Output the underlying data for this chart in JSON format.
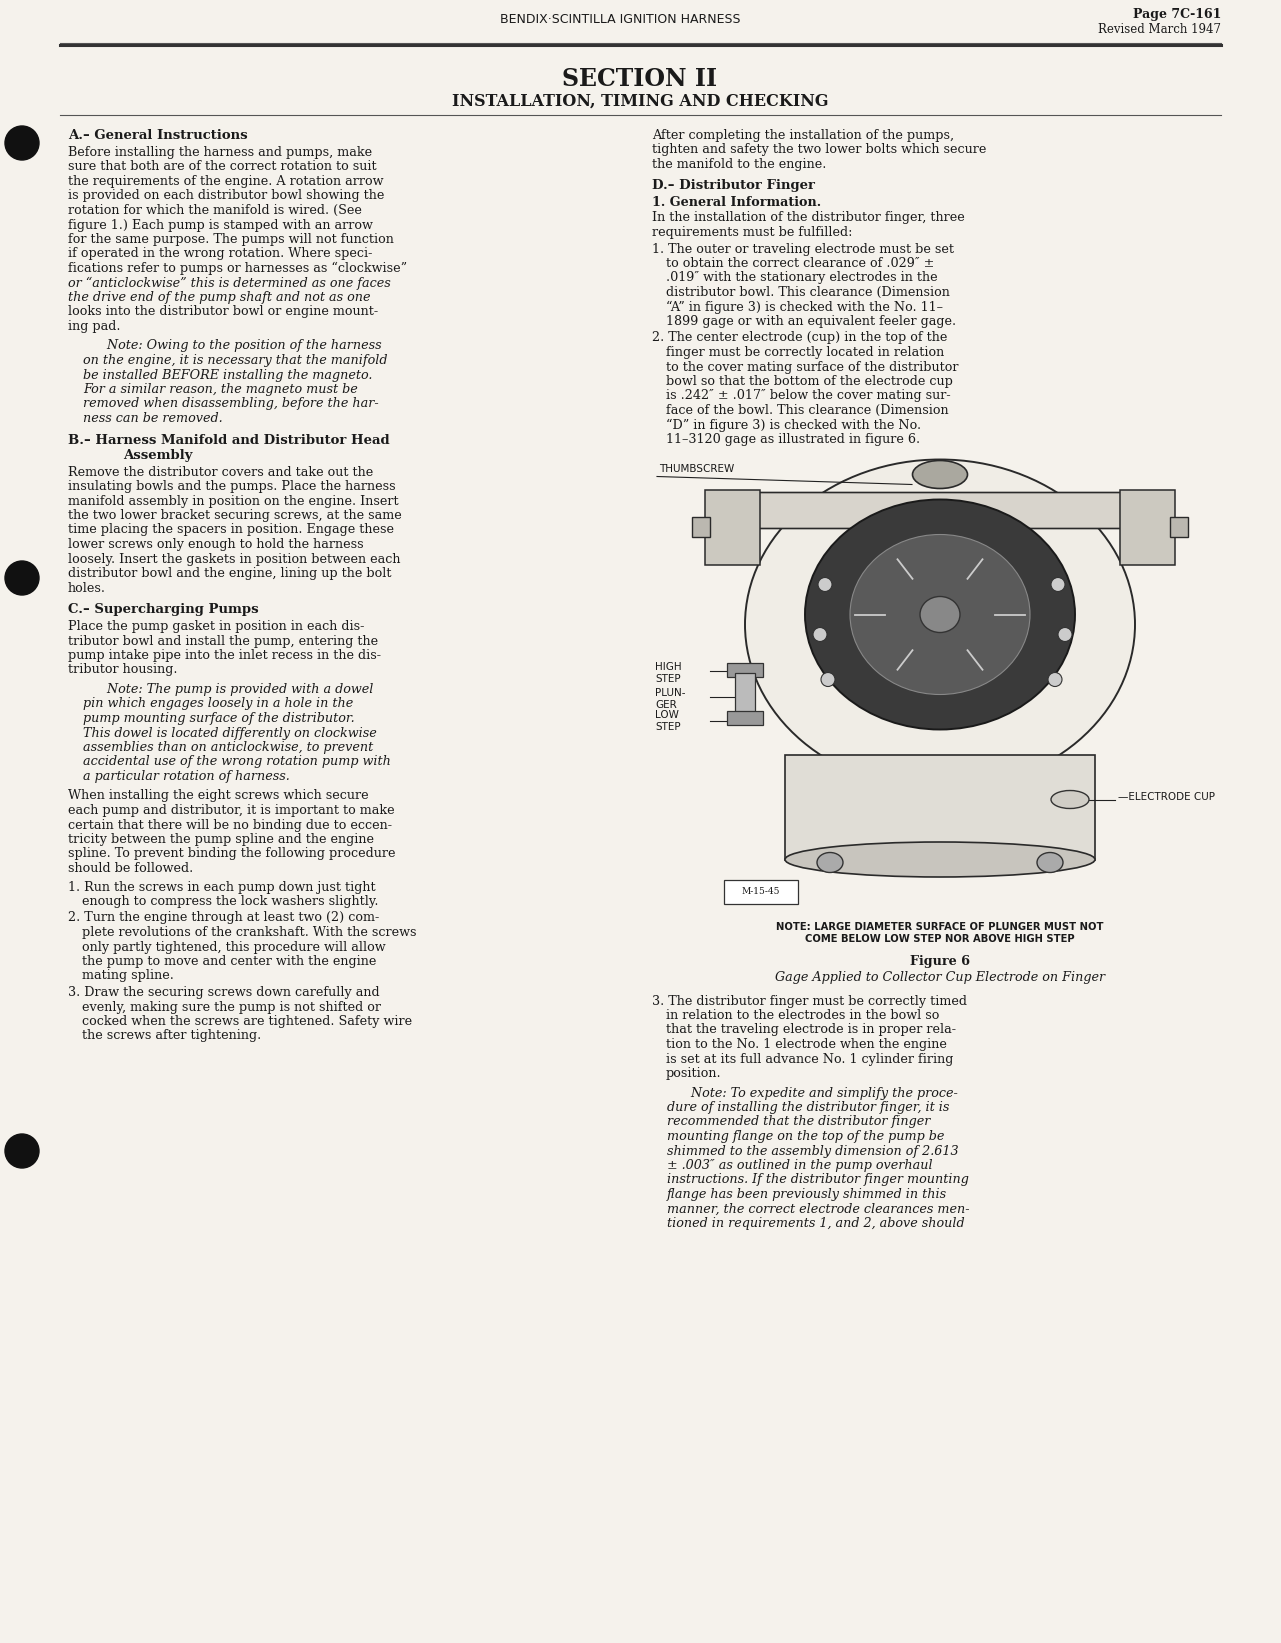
{
  "page_number": "Page 7C-161",
  "revised": "Revised March 1947",
  "header_title": "BENDIX·SCINTILLA IGNITION HARNESS",
  "section_title": "SECTION II",
  "section_subtitle": "INSTALLATION, TIMING AND CHECKING",
  "bg_color": "#f5f2ec",
  "text_color": "#1a1a1a",
  "figure_caption": "Figure 6",
  "figure_subcaption": "Gage Applied to Collector Cup Electrode on Finger",
  "figure_note": "NOTE: LARGE DIAMETER SURFACE OF PLUNGER MUST NOT\nCOME BELOW LOW STEP NOR ABOVE HIGH STEP"
}
